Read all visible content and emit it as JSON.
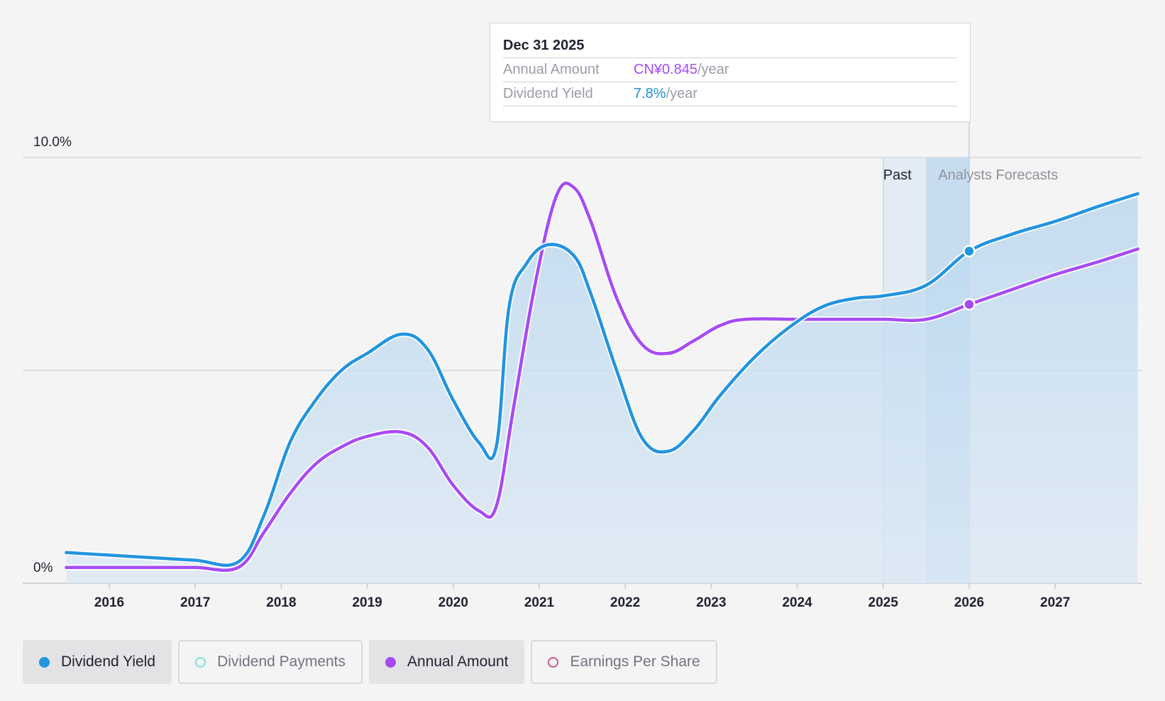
{
  "chart_data": {
    "type": "area",
    "x_axis": {
      "ticks": [
        "2016",
        "2017",
        "2018",
        "2019",
        "2020",
        "2021",
        "2022",
        "2023",
        "2024",
        "2025",
        "2026",
        "2027"
      ]
    },
    "y_axis": {
      "labels": [
        "10.0%",
        "0%"
      ],
      "range": [
        0,
        10
      ]
    },
    "periods": {
      "past_label": "Past",
      "forecast_label": "Analysts Forecasts"
    },
    "series": [
      {
        "name": "Dividend Yield",
        "color": "#2394df",
        "unit": "%",
        "points": [
          [
            2015.5,
            0.72
          ],
          [
            2016.0,
            0.66
          ],
          [
            2016.5,
            0.6
          ],
          [
            2017.0,
            0.54
          ],
          [
            2017.5,
            0.5
          ],
          [
            2017.8,
            1.6
          ],
          [
            2018.1,
            3.3
          ],
          [
            2018.4,
            4.3
          ],
          [
            2018.7,
            5.0
          ],
          [
            2019.0,
            5.4
          ],
          [
            2019.4,
            5.85
          ],
          [
            2019.7,
            5.5
          ],
          [
            2020.0,
            4.3
          ],
          [
            2020.3,
            3.3
          ],
          [
            2020.5,
            3.2
          ],
          [
            2020.65,
            6.5
          ],
          [
            2020.85,
            7.5
          ],
          [
            2021.1,
            7.95
          ],
          [
            2021.4,
            7.7
          ],
          [
            2021.6,
            6.8
          ],
          [
            2021.9,
            5.0
          ],
          [
            2022.2,
            3.4
          ],
          [
            2022.5,
            3.1
          ],
          [
            2022.8,
            3.6
          ],
          [
            2023.1,
            4.4
          ],
          [
            2023.5,
            5.3
          ],
          [
            2023.9,
            6.0
          ],
          [
            2024.3,
            6.5
          ],
          [
            2024.7,
            6.7
          ],
          [
            2025.0,
            6.75
          ],
          [
            2025.5,
            7.0
          ],
          [
            2026.0,
            7.8
          ],
          [
            2026.5,
            8.2
          ],
          [
            2027.0,
            8.5
          ],
          [
            2027.5,
            8.85
          ],
          [
            2027.96,
            9.15
          ]
        ]
      },
      {
        "name": "Annual Amount",
        "color": "#a64bf4",
        "unit": "CN¥",
        "points": [
          [
            2015.5,
            0.37
          ],
          [
            2016.0,
            0.37
          ],
          [
            2016.5,
            0.37
          ],
          [
            2017.0,
            0.37
          ],
          [
            2017.5,
            0.37
          ],
          [
            2017.8,
            1.2
          ],
          [
            2018.1,
            2.1
          ],
          [
            2018.4,
            2.8
          ],
          [
            2018.7,
            3.2
          ],
          [
            2019.0,
            3.45
          ],
          [
            2019.4,
            3.55
          ],
          [
            2019.7,
            3.2
          ],
          [
            2020.0,
            2.3
          ],
          [
            2020.3,
            1.7
          ],
          [
            2020.5,
            1.8
          ],
          [
            2020.7,
            4.1
          ],
          [
            2020.95,
            7.0
          ],
          [
            2021.2,
            9.1
          ],
          [
            2021.4,
            9.3
          ],
          [
            2021.6,
            8.5
          ],
          [
            2021.9,
            6.7
          ],
          [
            2022.2,
            5.6
          ],
          [
            2022.5,
            5.4
          ],
          [
            2022.8,
            5.7
          ],
          [
            2023.1,
            6.05
          ],
          [
            2023.4,
            6.2
          ],
          [
            2024.0,
            6.2
          ],
          [
            2024.5,
            6.2
          ],
          [
            2025.0,
            6.2
          ],
          [
            2025.5,
            6.2
          ],
          [
            2026.0,
            6.55
          ],
          [
            2026.5,
            6.9
          ],
          [
            2027.0,
            7.25
          ],
          [
            2027.5,
            7.55
          ],
          [
            2027.96,
            7.85
          ]
        ]
      }
    ],
    "highlight": {
      "x": 2026.0,
      "yield": 7.8,
      "amount": 6.55
    }
  },
  "tooltip": {
    "date": "Dec 31 2025",
    "annual_amount_label": "Annual Amount",
    "annual_amount_value": "CN¥0.845",
    "annual_amount_unit": "/year",
    "dividend_yield_label": "Dividend Yield",
    "dividend_yield_value": "7.8%",
    "dividend_yield_unit": "/year"
  },
  "legend": [
    {
      "label": "Dividend Yield",
      "active": true,
      "color": "#2394df",
      "filled": true
    },
    {
      "label": "Dividend Payments",
      "active": false,
      "color": "#7be3d8",
      "filled": false
    },
    {
      "label": "Annual Amount",
      "active": true,
      "color": "#a64bf4",
      "filled": true
    },
    {
      "label": "Earnings Per Share",
      "active": false,
      "color": "#d4568e",
      "filled": false
    }
  ]
}
